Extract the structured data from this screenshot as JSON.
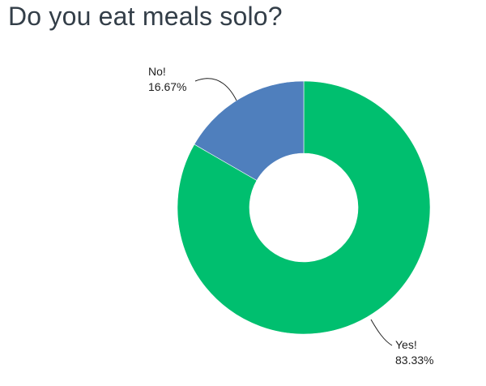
{
  "chart_data": {
    "type": "pie",
    "variant": "donut",
    "title": "Do you eat meals solo?",
    "slices": [
      {
        "name": "No!",
        "value": 16.67,
        "label": "16.67%",
        "color": "#4f7fbd"
      },
      {
        "name": "Yes!",
        "value": 83.33,
        "label": "83.33%",
        "color": "#00bf6f"
      }
    ],
    "start": "top",
    "direction": "clockwise",
    "slice_order_from_top": [
      "Yes!",
      "No!"
    ],
    "legend": "none"
  }
}
